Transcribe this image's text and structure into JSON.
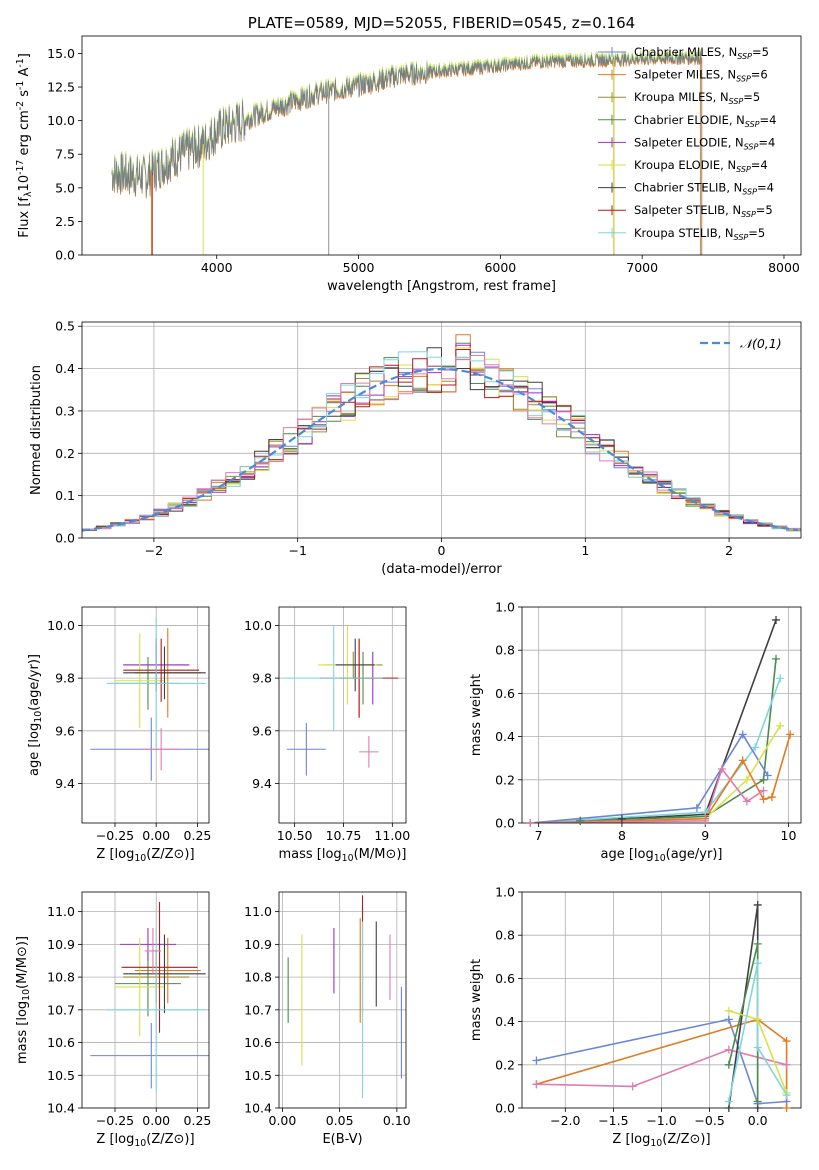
{
  "colors": {
    "Chabrier MILES": "#6a86d8",
    "Salpeter MILES": "#e07b22",
    "Kroupa MILES": "#9c8b3a",
    "Chabrier ELODIE": "#4d8a4d",
    "Salpeter ELODIE": "#9b31c9",
    "Kroupa ELODIE": "#d7e24a",
    "Chabrier STELIB": "#3f3f3f",
    "Salpeter STELIB": "#b21c1c",
    "Kroupa STELIB": "#7fd6dc",
    "pink": "#e27bb0",
    "grey": "#7a7a7a",
    "gauss": "#4a8ad6"
  },
  "chart_data": [
    {
      "id": "spectrum",
      "type": "line",
      "title": "PLATE=0589, MJD=52055, FIBERID=0545, z=0.164",
      "xlabel": "wavelength [Angstrom, rest frame]",
      "ylabel": "Flux [f$_{\\lambda}$10$^{-17}$ erg cm$^{-2}$ s$^{-1}$ A$^{-1}$]",
      "xlim": [
        3050,
        8120
      ],
      "ylim": [
        0,
        16.3
      ],
      "xticks": [
        4000,
        5000,
        6000,
        7000,
        8000
      ],
      "yticks": [
        0.0,
        2.5,
        5.0,
        7.5,
        10.0,
        12.5,
        15.0
      ],
      "legend": "top-right",
      "legend_entries": [
        {
          "label": "Chabrier MILES, N",
          "sub": "SSP",
          "tail": "=5"
        },
        {
          "label": "Salpeter MILES, N",
          "sub": "SSP",
          "tail": "=6"
        },
        {
          "label": "Kroupa MILES, N",
          "sub": "SSP",
          "tail": "=5"
        },
        {
          "label": "Chabrier ELODIE, N",
          "sub": "SSP",
          "tail": "=4"
        },
        {
          "label": "Salpeter ELODIE, N",
          "sub": "SSP",
          "tail": "=4"
        },
        {
          "label": "Kroupa ELODIE, N",
          "sub": "SSP",
          "tail": "=4"
        },
        {
          "label": "Chabrier STELIB, N",
          "sub": "SSP",
          "tail": "=4"
        },
        {
          "label": "Salpeter STELIB, N",
          "sub": "SSP",
          "tail": "=5"
        },
        {
          "label": "Kroupa STELIB, N",
          "sub": "SSP",
          "tail": "=5"
        }
      ],
      "data_range": [
        3260,
        7420
      ],
      "continuum": [
        [
          3260,
          6.1
        ],
        [
          3500,
          5.8
        ],
        [
          3700,
          7.3
        ],
        [
          3900,
          8.2
        ],
        [
          4000,
          9.2
        ],
        [
          4300,
          10.5
        ],
        [
          4700,
          12.0
        ],
        [
          5000,
          12.6
        ],
        [
          5300,
          13.4
        ],
        [
          5600,
          13.7
        ],
        [
          6000,
          14.1
        ],
        [
          6300,
          14.4
        ],
        [
          6700,
          14.5
        ],
        [
          7000,
          14.6
        ],
        [
          7420,
          14.7
        ]
      ],
      "spikes": [
        {
          "x": 4790,
          "y": 0
        },
        {
          "x": 6800,
          "y": 0
        },
        {
          "x": 7410,
          "y": 0
        }
      ],
      "model_starts": [
        {
          "name": "Salpeter STELIB",
          "x": 3545
        },
        {
          "name": "Kroupa ELODIE",
          "x": 3905
        },
        {
          "name": "Salpeter MILES",
          "x": 3540
        }
      ],
      "model_ends": [
        {
          "name": "Salpeter MILES",
          "x": 6800
        },
        {
          "name": "Kroupa ELODIE",
          "x": 6800
        },
        {
          "name": "Salpeter MILES",
          "x": 7420
        }
      ]
    },
    {
      "id": "residuals",
      "type": "histogram",
      "xlabel": "(data-model)/error",
      "ylabel": "Normed distribution",
      "xlim": [
        -2.5,
        2.5
      ],
      "ylim": [
        0,
        0.51
      ],
      "xticks": [
        -2,
        -1,
        0,
        1,
        2
      ],
      "xticklabels": [
        "−2",
        "−1",
        "0",
        "1",
        "2"
      ],
      "yticks": [
        0.0,
        0.1,
        0.2,
        0.3,
        0.4,
        0.5
      ],
      "bin_width": 0.1,
      "legend": "top-right",
      "legend_label": "$\\mathcal{N}(0,1)$",
      "peak_values": {
        "Salpeter MILES": 0.48,
        "Chabrier ELODIE": 0.46,
        "Salpeter ELODIE": 0.455,
        "Salpeter STELIB": 0.445
      }
    },
    {
      "id": "age_vs_Z",
      "type": "errorbar",
      "xlabel": "Z [log$_{10}$(Z/Z$_\\odot$)]",
      "ylabel": "age  [log$_{10}$(age/yr)]",
      "xlim": [
        -0.45,
        0.32
      ],
      "ylim": [
        9.25,
        10.07
      ],
      "xticks": [
        -0.25,
        0.0,
        0.25
      ],
      "xticklabels": [
        "−0.25",
        "0.00",
        "0.25"
      ],
      "yticks": [
        9.4,
        9.6,
        9.8,
        10.0
      ],
      "points": [
        {
          "s": "Chabrier MILES",
          "x": -0.03,
          "y": 9.53,
          "ex": 0.37,
          "ey": 0.12
        },
        {
          "s": "Salpeter MILES",
          "x": 0.07,
          "y": 9.82,
          "ex": 0.2,
          "ey": 0.17
        },
        {
          "s": "Kroupa MILES",
          "x": 0.0,
          "y": 9.85,
          "ex": 0.2,
          "ey": 0.08
        },
        {
          "s": "Chabrier ELODIE",
          "x": -0.05,
          "y": 9.78,
          "ex": 0.2,
          "ey": 0.1
        },
        {
          "s": "Salpeter ELODIE",
          "x": 0.0,
          "y": 9.85,
          "ex": 0.2,
          "ey": 0.1
        },
        {
          "s": "Kroupa ELODIE",
          "x": -0.1,
          "y": 9.79,
          "ex": 0.15,
          "ey": 0.18
        },
        {
          "s": "Chabrier STELIB",
          "x": 0.05,
          "y": 9.82,
          "ex": 0.25,
          "ey": 0.1
        },
        {
          "s": "Salpeter STELIB",
          "x": 0.03,
          "y": 9.83,
          "ex": 0.23,
          "ey": 0.12
        },
        {
          "s": "Kroupa STELIB",
          "x": -0.0,
          "y": 9.78,
          "ex": 0.3,
          "ey": 0.25
        },
        {
          "s": "pink",
          "x": 0.03,
          "y": 9.53,
          "ex": 0.12,
          "ey": 0.08
        }
      ]
    },
    {
      "id": "age_vs_mass",
      "type": "errorbar",
      "xlabel": "mass [log$_{10}$(M/M$_\\odot$)]",
      "ylabel": "",
      "xlim": [
        10.42,
        11.07
      ],
      "ylim": [
        9.25,
        10.07
      ],
      "xticks": [
        10.5,
        10.75,
        11.0
      ],
      "xticklabels": [
        "10.50",
        "10.75",
        "11.00"
      ],
      "yticks": [
        9.4,
        9.6,
        9.8,
        10.0
      ],
      "points": [
        {
          "s": "Chabrier MILES",
          "x": 10.56,
          "y": 9.53,
          "ex": 0.1,
          "ey": 0.1
        },
        {
          "s": "Salpeter MILES",
          "x": 10.83,
          "y": 9.8,
          "ex": 0.1,
          "ey": 0.15
        },
        {
          "s": "Kroupa MILES",
          "x": 10.8,
          "y": 9.85,
          "ex": 0.15,
          "ey": 0.05
        },
        {
          "s": "Chabrier ELODIE",
          "x": 10.85,
          "y": 9.8,
          "ex": 0.05,
          "ey": 0.1
        },
        {
          "s": "Salpeter ELODIE",
          "x": 10.9,
          "y": 9.8,
          "ex": 0.05,
          "ey": 0.1
        },
        {
          "s": "Kroupa ELODIE",
          "x": 10.77,
          "y": 9.85,
          "ex": 0.15,
          "ey": 0.15
        },
        {
          "s": "Chabrier STELIB",
          "x": 10.81,
          "y": 9.85,
          "ex": 0.1,
          "ey": 0.1
        },
        {
          "s": "Salpeter STELIB",
          "x": 10.83,
          "y": 9.8,
          "ex": 0.2,
          "ey": 0.15
        },
        {
          "s": "Kroupa STELIB",
          "x": 10.7,
          "y": 9.8,
          "ex": 0.25,
          "ey": 0.2
        },
        {
          "s": "pink",
          "x": 10.88,
          "y": 9.52,
          "ex": 0.05,
          "ey": 0.06
        }
      ]
    },
    {
      "id": "massweight_vs_age",
      "type": "line",
      "xlabel": "age  [log$_{10}$(age/yr)]",
      "ylabel": "mass weight",
      "xlim": [
        6.8,
        10.15
      ],
      "ylim": [
        0,
        1.0
      ],
      "xticks": [
        7,
        8,
        9,
        10
      ],
      "yticks": [
        0.0,
        0.2,
        0.4,
        0.6,
        0.8,
        1.0
      ],
      "series": [
        {
          "s": "Chabrier STELIB",
          "x": [
            6.9,
            7.5,
            8.0,
            9.0,
            9.85
          ],
          "y": [
            0.0,
            0.01,
            0.02,
            0.04,
            0.94
          ]
        },
        {
          "s": "Chabrier ELODIE",
          "x": [
            6.9,
            7.5,
            9.0,
            9.7,
            9.85
          ],
          "y": [
            0.0,
            0.01,
            0.03,
            0.2,
            0.76
          ]
        },
        {
          "s": "Kroupa STELIB",
          "x": [
            6.9,
            9.0,
            9.6,
            9.9
          ],
          "y": [
            0.0,
            0.05,
            0.35,
            0.67
          ]
        },
        {
          "s": "Chabrier MILES",
          "x": [
            6.9,
            8.9,
            9.45,
            9.75
          ],
          "y": [
            0.0,
            0.07,
            0.41,
            0.22
          ]
        },
        {
          "s": "Kroupa ELODIE",
          "x": [
            6.9,
            9.0,
            9.5,
            9.9
          ],
          "y": [
            0.0,
            0.02,
            0.2,
            0.45
          ]
        },
        {
          "s": "Salpeter MILES",
          "x": [
            6.9,
            9.0,
            9.45,
            9.7,
            9.8,
            10.02
          ],
          "y": [
            0.0,
            0.02,
            0.29,
            0.11,
            0.12,
            0.41
          ]
        },
        {
          "s": "pink",
          "x": [
            6.9,
            9.0,
            9.2,
            9.5,
            9.7
          ],
          "y": [
            0.0,
            0.01,
            0.25,
            0.1,
            0.15
          ]
        }
      ]
    },
    {
      "id": "mass_vs_Z",
      "type": "errorbar",
      "xlabel": "Z [log$_{10}$(Z/Z$_\\odot$)]",
      "ylabel": "mass [log$_{10}$(M/M$_\\odot$)]",
      "xlim": [
        -0.45,
        0.32
      ],
      "ylim": [
        10.4,
        11.06
      ],
      "xticks": [
        -0.25,
        0.0,
        0.25
      ],
      "xticklabels": [
        "−0.25",
        "0.00",
        "0.25"
      ],
      "yticks": [
        10.4,
        10.5,
        10.6,
        10.7,
        10.8,
        10.9,
        11.0
      ],
      "points": [
        {
          "s": "Chabrier MILES",
          "x": -0.03,
          "y": 10.56,
          "ex": 0.37,
          "ey": 0.1
        },
        {
          "s": "Salpeter MILES",
          "x": 0.07,
          "y": 10.82,
          "ex": 0.2,
          "ey": 0.1
        },
        {
          "s": "Kroupa MILES",
          "x": 0.0,
          "y": 10.8,
          "ex": 0.2,
          "ey": 0.08
        },
        {
          "s": "Chabrier ELODIE",
          "x": -0.05,
          "y": 10.78,
          "ex": 0.2,
          "ey": 0.1
        },
        {
          "s": "Salpeter ELODIE",
          "x": -0.05,
          "y": 10.9,
          "ex": 0.17,
          "ey": 0.05
        },
        {
          "s": "Kroupa ELODIE",
          "x": -0.1,
          "y": 10.77,
          "ex": 0.15,
          "ey": 0.15
        },
        {
          "s": "Chabrier STELIB",
          "x": 0.05,
          "y": 10.81,
          "ex": 0.25,
          "ey": 0.12
        },
        {
          "s": "Salpeter STELIB",
          "x": 0.02,
          "y": 10.83,
          "ex": 0.23,
          "ey": 0.2
        },
        {
          "s": "Kroupa STELIB",
          "x": 0.0,
          "y": 10.7,
          "ex": 0.3,
          "ey": 0.25
        },
        {
          "s": "pink",
          "x": -0.02,
          "y": 10.88,
          "ex": 0.05,
          "ey": 0.07
        }
      ]
    },
    {
      "id": "mass_vs_ebv",
      "type": "errorbar",
      "xlabel": "E(B-V)",
      "ylabel": "",
      "xlim": [
        -0.003,
        0.108
      ],
      "ylim": [
        10.4,
        11.06
      ],
      "xticks": [
        0.0,
        0.05,
        0.1
      ],
      "xticklabels": [
        "0.00",
        "0.05",
        "0.10"
      ],
      "yticks": [
        10.4,
        10.5,
        10.6,
        10.7,
        10.8,
        10.9,
        11.0
      ],
      "points": [
        {
          "s": "Chabrier ELODIE",
          "x": 0.005,
          "y": 10.76,
          "ex": 0,
          "ey": 0.1
        },
        {
          "s": "Kroupa ELODIE",
          "x": 0.017,
          "y": 10.73,
          "ex": 0,
          "ey": 0.2
        },
        {
          "s": "Salpeter ELODIE",
          "x": 0.045,
          "y": 10.85,
          "ex": 0,
          "ey": 0.1
        },
        {
          "s": "Salpeter MILES",
          "x": 0.068,
          "y": 10.82,
          "ex": 0,
          "ey": 0.16
        },
        {
          "s": "Salpeter STELIB",
          "x": 0.07,
          "y": 10.87,
          "ex": 0,
          "ey": 0.18
        },
        {
          "s": "Kroupa STELIB",
          "x": 0.07,
          "y": 10.7,
          "ex": 0,
          "ey": 0.27
        },
        {
          "s": "Chabrier STELIB",
          "x": 0.082,
          "y": 10.84,
          "ex": 0,
          "ey": 0.13
        },
        {
          "s": "pink",
          "x": 0.094,
          "y": 10.83,
          "ex": 0,
          "ey": 0.1
        },
        {
          "s": "Chabrier MILES",
          "x": 0.104,
          "y": 10.63,
          "ex": 0,
          "ey": 0.14
        }
      ]
    },
    {
      "id": "massweight_vs_Z",
      "type": "line",
      "xlabel": "Z [log$_{10}$(Z/Z$_\\odot$)]",
      "ylabel": "mass weight",
      "xlim": [
        -2.45,
        0.45
      ],
      "ylim": [
        0,
        1.0
      ],
      "xticks": [
        -2.0,
        -1.5,
        -1.0,
        -0.5,
        0.0
      ],
      "xticklabels": [
        "−2.0",
        "−1.5",
        "−1.0",
        "−0.5",
        "0.0"
      ],
      "yticks": [
        0.0,
        0.2,
        0.4,
        0.6,
        0.8,
        1.0
      ],
      "series": [
        {
          "s": "Chabrier MILES",
          "x": [
            -2.3,
            -0.3,
            0.0,
            0.3
          ],
          "y": [
            0.22,
            0.41,
            0.02,
            0.03
          ]
        },
        {
          "s": "Salpeter MILES",
          "x": [
            -2.3,
            0.0,
            0.3,
            0.3
          ],
          "y": [
            0.11,
            0.41,
            0.31,
            0.0
          ]
        },
        {
          "s": "pink",
          "x": [
            -2.3,
            -1.3,
            -0.3,
            0.3
          ],
          "y": [
            0.11,
            0.1,
            0.27,
            0.2
          ]
        },
        {
          "s": "Chabrier STELIB",
          "x": [
            -0.3,
            0.0,
            0.0
          ],
          "y": [
            0.0,
            0.94,
            0.0
          ]
        },
        {
          "s": "Chabrier ELODIE",
          "x": [
            -0.3,
            -0.0,
            0.0
          ],
          "y": [
            0.2,
            0.76,
            0.03
          ]
        },
        {
          "s": "Kroupa ELODIE",
          "x": [
            -0.3,
            0.0,
            0.3
          ],
          "y": [
            0.45,
            0.41,
            0.07
          ]
        },
        {
          "s": "Kroupa STELIB",
          "x": [
            -0.3,
            0.0,
            0.0,
            0.3
          ],
          "y": [
            0.03,
            0.67,
            0.28,
            0.06
          ]
        }
      ]
    }
  ]
}
